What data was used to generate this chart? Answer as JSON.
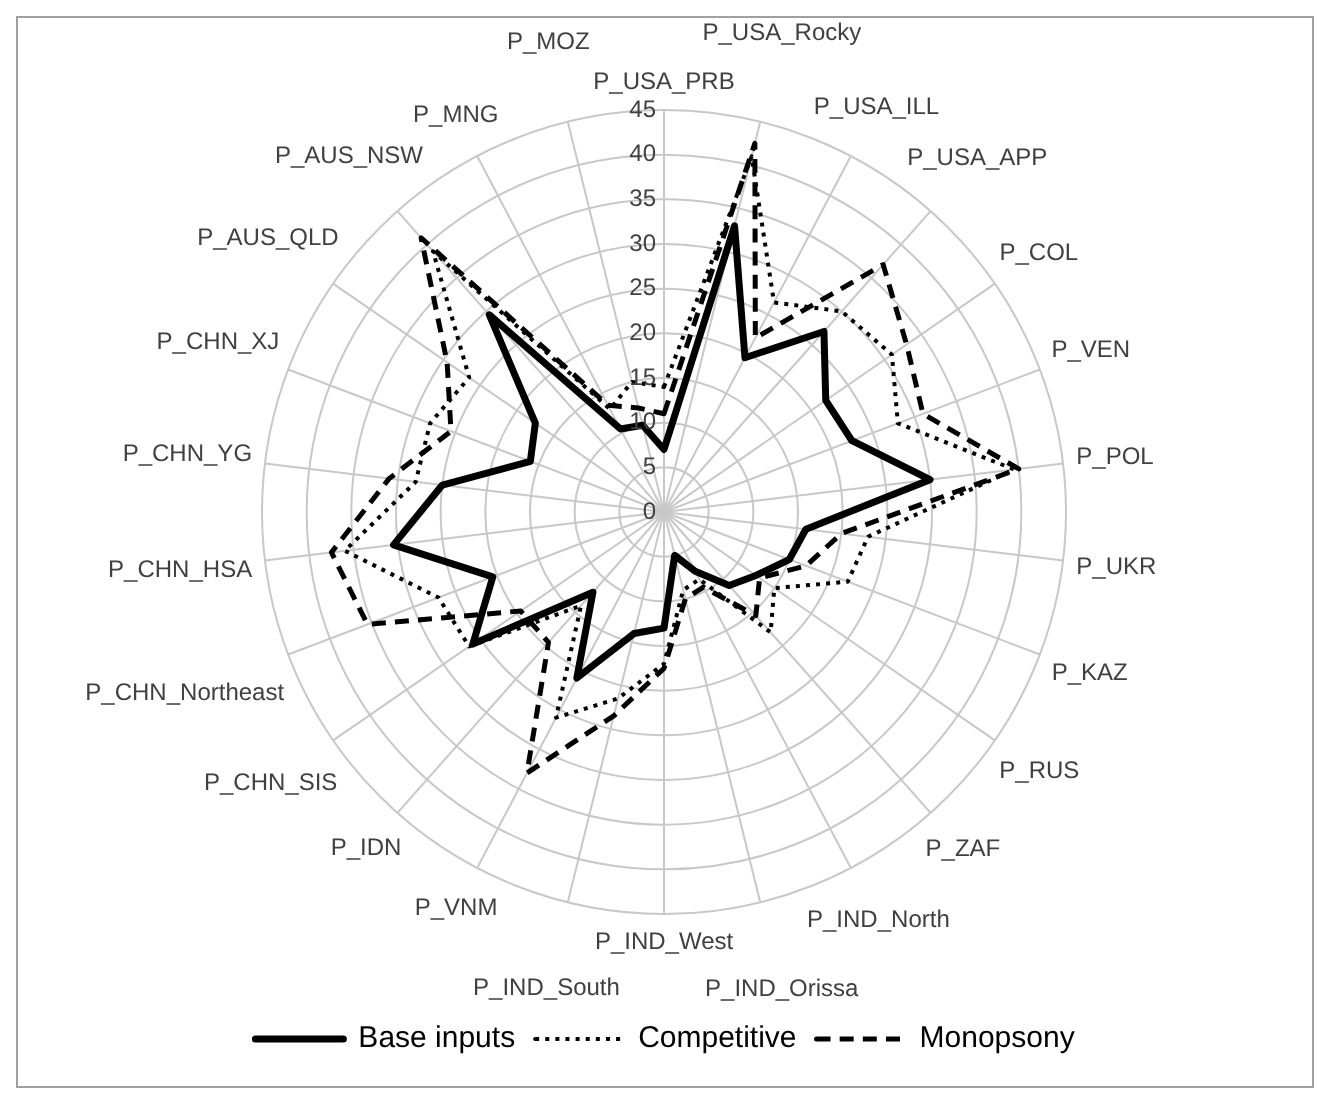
{
  "chart_data": {
    "type": "radar",
    "categories": [
      "P_USA_PRB",
      "P_USA_Rocky",
      "P_USA_ILL",
      "P_USA_APP",
      "P_COL",
      "P_VEN",
      "P_POL",
      "P_UKR",
      "P_KAZ",
      "P_RUS",
      "P_ZAF",
      "P_IND_North",
      "P_IND_Orissa",
      "P_IND_West",
      "P_IND_South",
      "P_VNM",
      "P_IDN",
      "P_CHN_SIS",
      "P_CHN_Northeast",
      "P_CHN_HSA",
      "P_CHN_YG",
      "P_CHN_XJ",
      "P_AUS_QLD",
      "P_AUS_NSW",
      "P_MNG",
      "P_MOZ"
    ],
    "series": [
      {
        "name": "Base inputs",
        "color": "#000000",
        "line_style": "solid",
        "values": [
          7,
          33,
          19.5,
          27,
          22,
          22.5,
          30,
          16,
          15,
          12.5,
          11,
          7.5,
          5,
          13,
          14,
          21,
          12,
          26,
          20.5,
          30.5,
          25,
          16,
          17.5,
          29.5,
          10.5,
          10
        ]
      },
      {
        "name": "Competitive",
        "color": "#000000",
        "line_style": "dotted",
        "values": [
          14,
          41,
          26.5,
          30,
          31,
          28,
          39.5,
          23,
          22,
          15,
          18,
          8.5,
          9,
          17,
          21.5,
          26,
          14,
          26.5,
          27,
          36,
          28,
          28,
          26.5,
          39,
          13,
          15
        ]
      },
      {
        "name": "Monopsony",
        "color": "#000000",
        "line_style": "dashed",
        "values": [
          11,
          42.5,
          22,
          37,
          33,
          31,
          40,
          20,
          17,
          13,
          15.5,
          9.5,
          10,
          17.5,
          23.5,
          33,
          19.5,
          19.5,
          35.5,
          37.5,
          31,
          25.5,
          29.5,
          41,
          13.5,
          12
        ]
      }
    ],
    "ylim": [
      0,
      45
    ],
    "yticks": [
      0,
      5,
      10,
      15,
      20,
      25,
      30,
      35,
      40,
      45
    ],
    "grid": true,
    "legend": "bottom",
    "marker": "none"
  }
}
